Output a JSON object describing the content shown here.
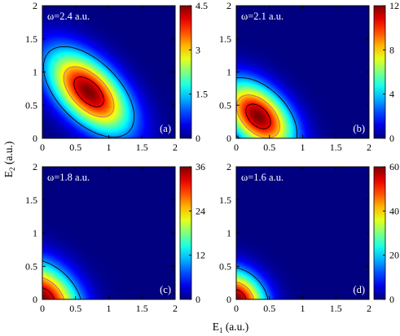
{
  "figure": {
    "xlabel": "E",
    "xlabel_sub": "1",
    "xlabel_unit": " (a.u.)",
    "ylabel": "E",
    "ylabel_sub": "2",
    "ylabel_unit": " (a.u.)"
  },
  "chart_data": [
    {
      "type": "heatmap",
      "panel": "(a)",
      "title": "ω=2.4 a.u.",
      "xlim": [
        0,
        2
      ],
      "ylim": [
        0,
        2
      ],
      "xticks": [
        "0",
        "0.5",
        "1",
        "1.5",
        "2"
      ],
      "yticks": [
        "0",
        "0.5",
        "1",
        "1.5",
        "2"
      ],
      "colorbar": {
        "range": [
          0,
          4.5
        ],
        "ticks": [
          "0",
          "1.5",
          "3",
          "4.5"
        ]
      },
      "peak": {
        "E1": 0.7,
        "E2": 0.7,
        "value": 4.5
      },
      "contour_levels": [
        3.9,
        3.0,
        1.2
      ],
      "contour_colors": [
        "#000000",
        "#b06a8a",
        "#000000"
      ]
    },
    {
      "type": "heatmap",
      "panel": "(b)",
      "title": "ω=2.1 a.u.",
      "xlim": [
        0,
        2
      ],
      "ylim": [
        0,
        2
      ],
      "xticks": [
        "0",
        "0.5",
        "1",
        "1.5",
        "2"
      ],
      "yticks": [
        "0",
        "0.5",
        "1",
        "1.5",
        "2"
      ],
      "colorbar": {
        "range": [
          0,
          12
        ],
        "ticks": [
          "0",
          "4",
          "8",
          "12"
        ]
      },
      "peak": {
        "E1": 0.33,
        "E2": 0.33,
        "value": 12
      },
      "contour_levels": [
        10.5,
        8.0,
        3.2
      ],
      "contour_colors": [
        "#000000",
        "#b06a8a",
        "#000000"
      ]
    },
    {
      "type": "heatmap",
      "panel": "(c)",
      "title": "ω=1.8 a.u.",
      "xlim": [
        0,
        2
      ],
      "ylim": [
        0,
        2
      ],
      "xticks": [
        "0",
        "0.5",
        "1",
        "1.5",
        "2"
      ],
      "yticks": [
        "0",
        "0.5",
        "1",
        "1.5",
        "2"
      ],
      "colorbar": {
        "range": [
          0,
          36
        ],
        "ticks": [
          "0",
          "12",
          "24",
          "36"
        ]
      },
      "peak": {
        "E1": 0.0,
        "E2": 0.0,
        "value": 36
      },
      "contour_levels": [
        32,
        24,
        10
      ],
      "contour_colors": [
        "#000000",
        "#b06a8a",
        "#000000"
      ]
    },
    {
      "type": "heatmap",
      "panel": "(d)",
      "title": "ω=1.6 a.u.",
      "xlim": [
        0,
        2
      ],
      "ylim": [
        0,
        2
      ],
      "xticks": [
        "0",
        "0.5",
        "1",
        "1.5",
        "2"
      ],
      "yticks": [
        "0",
        "0.5",
        "1",
        "1.5",
        "2"
      ],
      "colorbar": {
        "range": [
          0,
          60
        ],
        "ticks": [
          "0",
          "20",
          "40",
          "60"
        ]
      },
      "peak": {
        "E1": 0.0,
        "E2": 0.0,
        "value": 60
      },
      "contour_levels": [
        53,
        40,
        16
      ],
      "contour_colors": [
        "#000000",
        "#b06a8a",
        "#000000"
      ]
    }
  ]
}
